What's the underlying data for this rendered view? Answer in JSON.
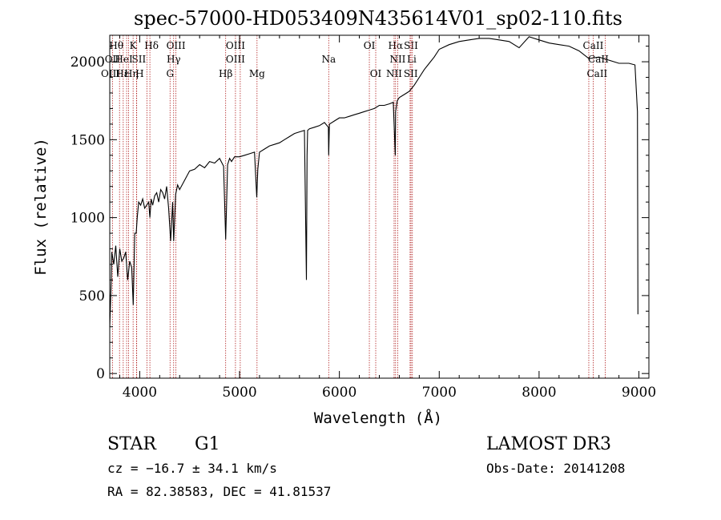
{
  "chart_data": {
    "type": "line",
    "title": "spec-57000-HD053409N435614V01_sp02-110.fits",
    "xlabel": "Wavelength (Å)",
    "ylabel": "Flux (relative)",
    "xlim": [
      3700,
      9100
    ],
    "ylim": [
      -30,
      2170
    ],
    "x_ticks": [
      4000,
      5000,
      6000,
      7000,
      8000,
      9000
    ],
    "y_ticks": [
      0,
      500,
      1000,
      1500,
      2000
    ],
    "grid": false,
    "series": [
      {
        "x": [
          3700,
          3715,
          3720,
          3740,
          3760,
          3780,
          3800,
          3820,
          3840,
          3860,
          3880,
          3900,
          3920,
          3935,
          3950,
          3965,
          3975,
          3990,
          4010,
          4030,
          4050,
          4070,
          4090,
          4102,
          4115,
          4130,
          4150,
          4170,
          4190,
          4210,
          4230,
          4250,
          4270,
          4290,
          4310,
          4330,
          4340,
          4360,
          4380,
          4400,
          4450,
          4500,
          4550,
          4600,
          4650,
          4700,
          4750,
          4800,
          4840,
          4861,
          4880,
          4900,
          4920,
          4950,
          5000,
          5050,
          5100,
          5150,
          5172,
          5183,
          5200,
          5250,
          5300,
          5350,
          5400,
          5450,
          5500,
          5550,
          5600,
          5650,
          5670,
          5676,
          5682,
          5700,
          5750,
          5800,
          5850,
          5890,
          5893,
          5900,
          5950,
          6000,
          6050,
          6100,
          6150,
          6200,
          6250,
          6300,
          6350,
          6400,
          6450,
          6500,
          6540,
          6560,
          6563,
          6580,
          6600,
          6650,
          6700,
          6750,
          6800,
          6850,
          6900,
          6950,
          7000,
          7100,
          7200,
          7300,
          7400,
          7500,
          7600,
          7700,
          7800,
          7900,
          8000,
          8100,
          8200,
          8300,
          8400,
          8500,
          8600,
          8700,
          8800,
          8900,
          8960,
          8985,
          8990
        ],
        "y": [
          300,
          600,
          780,
          700,
          820,
          620,
          800,
          720,
          740,
          780,
          600,
          720,
          680,
          440,
          900,
          900,
          1000,
          1100,
          1080,
          1120,
          1060,
          1080,
          1100,
          1000,
          1120,
          1080,
          1140,
          1160,
          1100,
          1180,
          1160,
          1120,
          1200,
          1060,
          850,
          1100,
          850,
          1150,
          1210,
          1180,
          1240,
          1300,
          1310,
          1340,
          1320,
          1360,
          1350,
          1380,
          1330,
          860,
          1340,
          1380,
          1360,
          1390,
          1390,
          1400,
          1410,
          1420,
          1130,
          1310,
          1420,
          1440,
          1460,
          1470,
          1480,
          1500,
          1520,
          1540,
          1550,
          1560,
          600,
          1400,
          1560,
          1570,
          1580,
          1590,
          1610,
          1580,
          1400,
          1600,
          1620,
          1640,
          1640,
          1650,
          1660,
          1670,
          1680,
          1690,
          1700,
          1720,
          1720,
          1730,
          1740,
          1400,
          1680,
          1750,
          1770,
          1790,
          1810,
          1850,
          1900,
          1950,
          1990,
          2030,
          2080,
          2110,
          2130,
          2140,
          2150,
          2150,
          2140,
          2130,
          2090,
          2160,
          2140,
          2120,
          2110,
          2100,
          2070,
          2020,
          2030,
          2010,
          1990,
          1990,
          1980,
          1680,
          380
        ]
      }
    ],
    "lines": [
      {
        "name": "Hθ",
        "wl": 3798,
        "row": 0,
        "dx": -4
      },
      {
        "name": "K",
        "wl": 3934,
        "row": 0,
        "dx": 0
      },
      {
        "name": "Hδ",
        "wl": 4102,
        "row": 0,
        "dx": 2
      },
      {
        "name": "OIII",
        "wl": 4363,
        "row": 0,
        "dx": 0
      },
      {
        "name": "OIII",
        "wl": 4959,
        "row": 0,
        "dx": 0
      },
      {
        "name": "OI",
        "wl": 6300,
        "row": 0,
        "dx": 0
      },
      {
        "name": "Hα",
        "wl": 6563,
        "row": 0,
        "dx": 0
      },
      {
        "name": "SII",
        "wl": 6717,
        "row": 0,
        "dx": 0
      },
      {
        "name": "CaII",
        "wl": 8542,
        "row": 0,
        "dx": 0
      },
      {
        "name": "OII",
        "wl": 3727,
        "row": 1,
        "dx": 0
      },
      {
        "name": "HeI",
        "wl": 3889,
        "row": 1,
        "dx": -6
      },
      {
        "name": "SII",
        "wl": 4072,
        "row": 1,
        "dx": -10
      },
      {
        "name": "Hγ",
        "wl": 4340,
        "row": 1,
        "dx": 0
      },
      {
        "name": "OIII",
        "wl": 5007,
        "row": 1,
        "dx": -6
      },
      {
        "name": "Na",
        "wl": 5893,
        "row": 1,
        "dx": 0
      },
      {
        "name": "NII",
        "wl": 6584,
        "row": 1,
        "dx": 0
      },
      {
        "name": "Li",
        "wl": 6708,
        "row": 1,
        "dx": 2
      },
      {
        "name": "CaII",
        "wl": 8498,
        "row": 1,
        "dx": 12
      },
      {
        "name": "OIII",
        "wl": 3869,
        "row": 2,
        "dx": -20
      },
      {
        "name": "Hε",
        "wl": 3970,
        "row": 2,
        "dx": -18
      },
      {
        "name": "Hη",
        "wl": 3835,
        "row": 2,
        "dx": 10
      },
      {
        "name": "H",
        "wl": 3968,
        "row": 2,
        "dx": 4
      },
      {
        "name": "G",
        "wl": 4304,
        "row": 2,
        "dx": 0
      },
      {
        "name": "Hβ",
        "wl": 4861,
        "row": 2,
        "dx": 0
      },
      {
        "name": "Mg",
        "wl": 5175,
        "row": 2,
        "dx": 0
      },
      {
        "name": "OI",
        "wl": 6364,
        "row": 2,
        "dx": 0
      },
      {
        "name": "NII",
        "wl": 6548,
        "row": 2,
        "dx": 0
      },
      {
        "name": "SII",
        "wl": 6731,
        "row": 2,
        "dx": -2
      },
      {
        "name": "CaII",
        "wl": 8662,
        "row": 2,
        "dx": -10
      }
    ],
    "line_color": "#b22222"
  },
  "footer": {
    "object_class": "STAR",
    "subclass": "G1",
    "survey": "LAMOST DR3",
    "cz": "cz = −16.7 ± 34.1 km/s",
    "obs_date": "Obs-Date: 20141208",
    "coords": "RA =  82.38583, DEC =  41.81537"
  }
}
